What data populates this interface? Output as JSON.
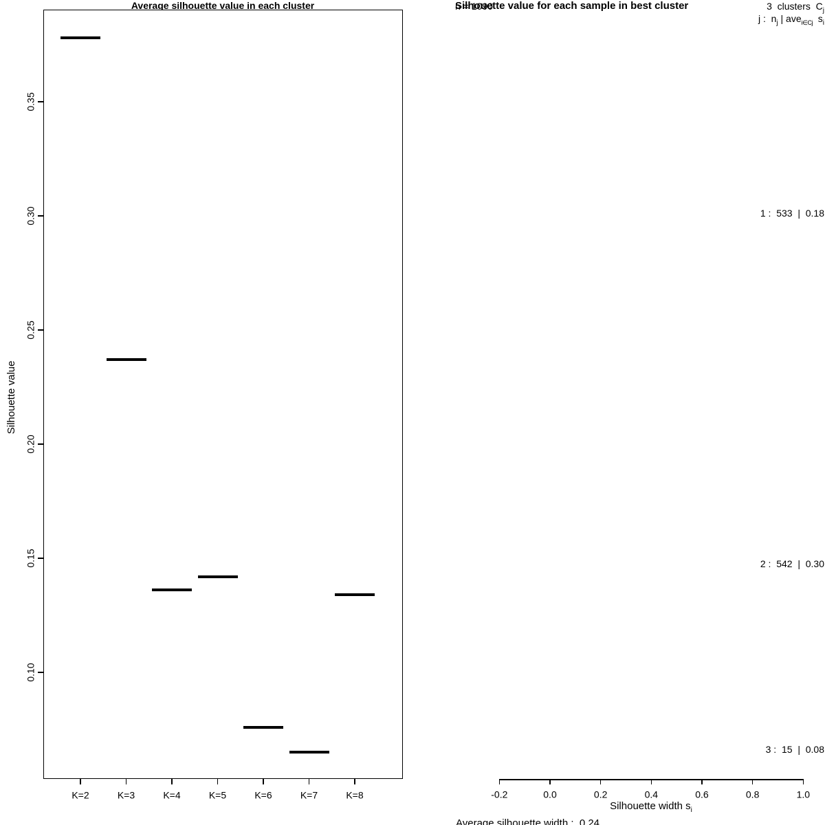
{
  "chart_data": [
    {
      "type": "scatter",
      "marker": "horizontal-segment",
      "title": "Average silhouette value in each cluster",
      "xlabel": "",
      "ylabel": "Silhouette value",
      "categories": [
        "K=2",
        "K=3",
        "K=4",
        "K=5",
        "K=6",
        "K=7",
        "K=8"
      ],
      "values": [
        0.378,
        0.237,
        0.136,
        0.142,
        0.076,
        0.065,
        0.134
      ],
      "ylim": [
        0.053,
        0.39
      ],
      "yticks": [
        0.1,
        0.15,
        0.2,
        0.25,
        0.3,
        0.35
      ],
      "grid": "off",
      "legend": "none",
      "best_cluster": "K=3"
    },
    {
      "type": "bar",
      "subtype": "silhouette-plot",
      "title": "Silhouette value for each sample in best cluster",
      "sample_count_label": "n = 1090",
      "clusters_label": {
        "text": "3  clusters  C",
        "sub": "j"
      },
      "row_formula": {
        "p1": "j :  n",
        "s1": "j",
        "p2": " | ave",
        "s2": "i∈Cj",
        "p3": "  s",
        "s3": "i"
      },
      "clusters": [
        {
          "j": "1",
          "n": "533",
          "ave": "0.18"
        },
        {
          "j": "2",
          "n": "542",
          "ave": "0.30"
        },
        {
          "j": "3",
          "n": "15",
          "ave": "0.08"
        }
      ],
      "xlabel": {
        "text": "Silhouette width s",
        "sub": "i"
      },
      "xticks": [
        -0.2,
        0.0,
        0.2,
        0.4,
        0.6,
        0.8,
        1.0
      ],
      "xlim": [
        -0.248,
        1.048
      ],
      "bars_visible": false,
      "footer": "Average silhouette width :  0.24",
      "grid": "off",
      "legend": "none"
    }
  ],
  "colors": {
    "foreground": "#000000",
    "background": "#ffffff"
  }
}
